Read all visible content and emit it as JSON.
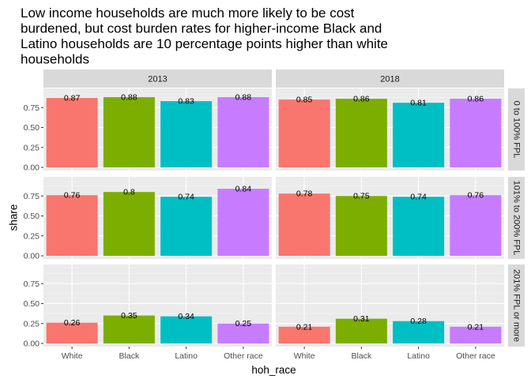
{
  "chart_data": {
    "type": "bar",
    "title": "Low income households are much more likely to be cost burdened, but cost burden rates for higher-income Black and Latino households are 10 percentage points higher than white households",
    "title_lines": [
      "Low income households are much more likely to be cost",
      "burdened, but cost burden rates for higher-income Black and",
      "Latino households are 10 percentage points higher than white",
      "households"
    ],
    "xlabel": "hoh_race",
    "ylabel": "share",
    "ylim": [
      0,
      0.95
    ],
    "y_ticks": [
      "0.00",
      "0.25",
      "0.50",
      "0.75"
    ],
    "grid": true,
    "legend": "none",
    "categories": [
      "White",
      "Black",
      "Latino",
      "Other race"
    ],
    "colors": [
      "#F8766D",
      "#7CAE00",
      "#00BFC4",
      "#C77CFF"
    ],
    "facet_cols": [
      "2013",
      "2018"
    ],
    "facet_rows": [
      "0 to 100% FPL",
      "101% to 200% FPL",
      "201% FPL or more"
    ],
    "panels": [
      {
        "row": 0,
        "col": 0,
        "values": [
          0.87,
          0.88,
          0.83,
          0.88
        ],
        "labels": [
          "0.87",
          "0.88",
          "0.83",
          "0.88"
        ]
      },
      {
        "row": 0,
        "col": 1,
        "values": [
          0.85,
          0.86,
          0.81,
          0.86
        ],
        "labels": [
          "0.85",
          "0.86",
          "0.81",
          "0.86"
        ]
      },
      {
        "row": 1,
        "col": 0,
        "values": [
          0.76,
          0.8,
          0.74,
          0.84
        ],
        "labels": [
          "0.76",
          "0.8",
          "0.74",
          "0.84"
        ]
      },
      {
        "row": 1,
        "col": 1,
        "values": [
          0.78,
          0.75,
          0.74,
          0.76
        ],
        "labels": [
          "0.78",
          "0.75",
          "0.74",
          "0.76"
        ]
      },
      {
        "row": 2,
        "col": 0,
        "values": [
          0.26,
          0.35,
          0.34,
          0.25
        ],
        "labels": [
          "0.26",
          "0.35",
          "0.34",
          "0.25"
        ]
      },
      {
        "row": 2,
        "col": 1,
        "values": [
          0.21,
          0.31,
          0.28,
          0.21
        ],
        "labels": [
          "0.21",
          "0.31",
          "0.28",
          "0.21"
        ]
      }
    ]
  }
}
